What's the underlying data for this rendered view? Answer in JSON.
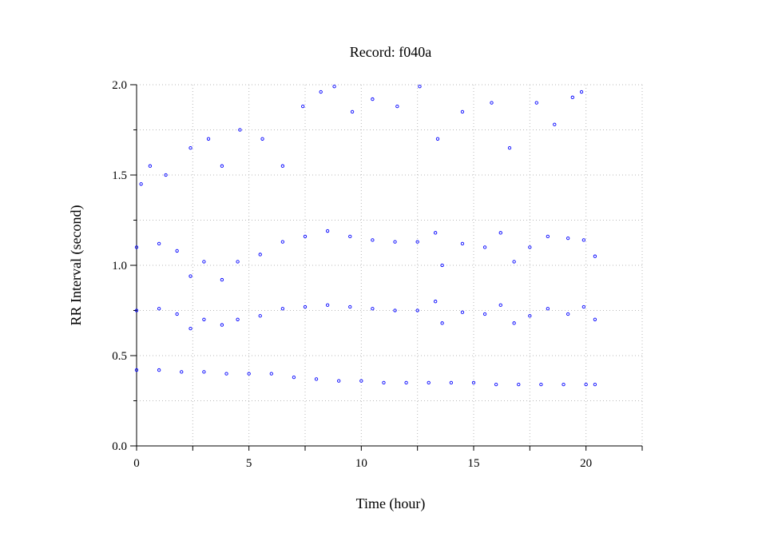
{
  "chart_data": {
    "type": "scatter",
    "title": "Record:  f040a",
    "xlabel": "Time (hour)",
    "ylabel": "RR Interval (second)",
    "xlim": [
      0,
      22.5
    ],
    "ylim": [
      0,
      2.0
    ],
    "xticks": [
      0,
      5,
      10,
      15,
      20
    ],
    "xtick_labels": [
      "0",
      "5",
      "10",
      "15",
      "20"
    ],
    "yticks": [
      0.0,
      0.5,
      1.0,
      1.5,
      2.0
    ],
    "ytick_labels": [
      "0.0",
      "0.5",
      "1.0",
      "1.5",
      "2.0"
    ],
    "grid": true,
    "marker": "open-circle",
    "color": "#0000ff",
    "series": [
      {
        "values": [
          {
            "x": 0.0,
            "y": 0.42
          },
          {
            "x": 1.0,
            "y": 0.42
          },
          {
            "x": 2.0,
            "y": 0.41
          },
          {
            "x": 3.0,
            "y": 0.41
          },
          {
            "x": 4.0,
            "y": 0.4
          },
          {
            "x": 5.0,
            "y": 0.4
          },
          {
            "x": 6.0,
            "y": 0.4
          },
          {
            "x": 7.0,
            "y": 0.38
          },
          {
            "x": 8.0,
            "y": 0.37
          },
          {
            "x": 9.0,
            "y": 0.36
          },
          {
            "x": 10.0,
            "y": 0.36
          },
          {
            "x": 11.0,
            "y": 0.35
          },
          {
            "x": 12.0,
            "y": 0.35
          },
          {
            "x": 13.0,
            "y": 0.35
          },
          {
            "x": 14.0,
            "y": 0.35
          },
          {
            "x": 15.0,
            "y": 0.35
          },
          {
            "x": 16.0,
            "y": 0.34
          },
          {
            "x": 17.0,
            "y": 0.34
          },
          {
            "x": 18.0,
            "y": 0.34
          },
          {
            "x": 19.0,
            "y": 0.34
          },
          {
            "x": 20.0,
            "y": 0.34
          },
          {
            "x": 20.4,
            "y": 0.34
          }
        ]
      },
      {
        "values": [
          {
            "x": 0.0,
            "y": 0.75
          },
          {
            "x": 1.0,
            "y": 0.76
          },
          {
            "x": 1.8,
            "y": 0.73
          },
          {
            "x": 2.4,
            "y": 0.65
          },
          {
            "x": 3.0,
            "y": 0.7
          },
          {
            "x": 3.8,
            "y": 0.67
          },
          {
            "x": 4.5,
            "y": 0.7
          },
          {
            "x": 5.5,
            "y": 0.72
          },
          {
            "x": 6.5,
            "y": 0.76
          },
          {
            "x": 7.5,
            "y": 0.77
          },
          {
            "x": 8.5,
            "y": 0.78
          },
          {
            "x": 9.5,
            "y": 0.77
          },
          {
            "x": 10.5,
            "y": 0.76
          },
          {
            "x": 11.5,
            "y": 0.75
          },
          {
            "x": 12.5,
            "y": 0.75
          },
          {
            "x": 13.3,
            "y": 0.8
          },
          {
            "x": 13.6,
            "y": 0.68
          },
          {
            "x": 14.5,
            "y": 0.74
          },
          {
            "x": 15.5,
            "y": 0.73
          },
          {
            "x": 16.2,
            "y": 0.78
          },
          {
            "x": 16.8,
            "y": 0.68
          },
          {
            "x": 17.5,
            "y": 0.72
          },
          {
            "x": 18.3,
            "y": 0.76
          },
          {
            "x": 19.2,
            "y": 0.73
          },
          {
            "x": 19.9,
            "y": 0.77
          },
          {
            "x": 20.4,
            "y": 0.7
          }
        ]
      },
      {
        "values": [
          {
            "x": 0.0,
            "y": 1.1
          },
          {
            "x": 1.0,
            "y": 1.12
          },
          {
            "x": 1.8,
            "y": 1.08
          },
          {
            "x": 2.4,
            "y": 0.94
          },
          {
            "x": 3.0,
            "y": 1.02
          },
          {
            "x": 3.8,
            "y": 0.92
          },
          {
            "x": 4.5,
            "y": 1.02
          },
          {
            "x": 5.5,
            "y": 1.06
          },
          {
            "x": 6.5,
            "y": 1.13
          },
          {
            "x": 7.5,
            "y": 1.16
          },
          {
            "x": 8.5,
            "y": 1.19
          },
          {
            "x": 9.5,
            "y": 1.16
          },
          {
            "x": 10.5,
            "y": 1.14
          },
          {
            "x": 11.5,
            "y": 1.13
          },
          {
            "x": 12.5,
            "y": 1.13
          },
          {
            "x": 13.3,
            "y": 1.18
          },
          {
            "x": 13.6,
            "y": 1.0
          },
          {
            "x": 14.5,
            "y": 1.12
          },
          {
            "x": 15.5,
            "y": 1.1
          },
          {
            "x": 16.2,
            "y": 1.18
          },
          {
            "x": 16.8,
            "y": 1.02
          },
          {
            "x": 17.5,
            "y": 1.1
          },
          {
            "x": 18.3,
            "y": 1.16
          },
          {
            "x": 19.2,
            "y": 1.15
          },
          {
            "x": 19.9,
            "y": 1.14
          },
          {
            "x": 20.4,
            "y": 1.05
          }
        ]
      },
      {
        "values": [
          {
            "x": 0.2,
            "y": 1.45
          },
          {
            "x": 0.6,
            "y": 1.55
          },
          {
            "x": 1.3,
            "y": 1.5
          },
          {
            "x": 2.4,
            "y": 1.65
          },
          {
            "x": 3.2,
            "y": 1.7
          },
          {
            "x": 3.8,
            "y": 1.55
          },
          {
            "x": 4.6,
            "y": 1.75
          },
          {
            "x": 5.6,
            "y": 1.7
          },
          {
            "x": 6.5,
            "y": 1.55
          },
          {
            "x": 7.4,
            "y": 1.88
          },
          {
            "x": 8.2,
            "y": 1.96
          },
          {
            "x": 8.8,
            "y": 1.99
          },
          {
            "x": 9.6,
            "y": 1.85
          },
          {
            "x": 10.5,
            "y": 1.92
          },
          {
            "x": 11.6,
            "y": 1.88
          },
          {
            "x": 12.6,
            "y": 1.99
          },
          {
            "x": 13.4,
            "y": 1.7
          },
          {
            "x": 14.5,
            "y": 1.85
          },
          {
            "x": 15.8,
            "y": 1.9
          },
          {
            "x": 16.6,
            "y": 1.65
          },
          {
            "x": 17.8,
            "y": 1.9
          },
          {
            "x": 18.6,
            "y": 1.78
          },
          {
            "x": 19.4,
            "y": 1.93
          },
          {
            "x": 19.8,
            "y": 1.96
          }
        ]
      }
    ]
  }
}
